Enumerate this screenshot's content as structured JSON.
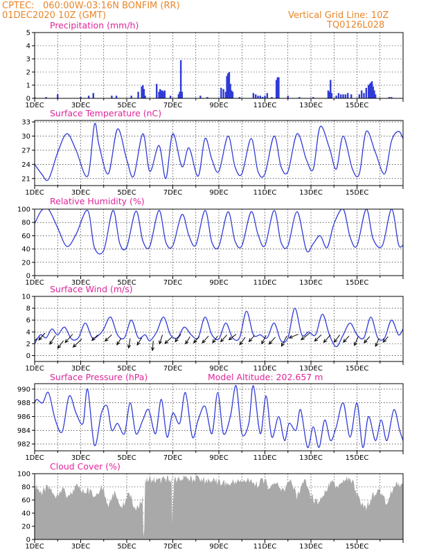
{
  "header": {
    "source_label": "CPTEC:",
    "location": "060:00W-03:16N  BONFIM (RR)",
    "run": "01DEC2020 10Z (GMT)",
    "grid_note": "Vertical Grid Line: 10Z",
    "model_code": "TQ0126L028"
  },
  "x_tick_labels": [
    "1DEC",
    "3DEC",
    "5DEC",
    "7DEC",
    "9DEC",
    "11DEC",
    "13DEC",
    "15DEC"
  ],
  "colors": {
    "series": "#2f3bd6",
    "cloud": "#a9a9a9",
    "arrow": "#000000",
    "header": "#e8862a",
    "title": "#e0249a"
  },
  "chart_data": [
    {
      "type": "bar",
      "title": "Precipitation (mm/h)",
      "x": [
        0.0,
        0.5,
        1.0,
        2.0,
        2.35,
        2.55,
        3.35,
        3.55,
        4.2,
        4.5,
        4.65,
        4.7,
        4.75,
        4.8,
        5.3,
        5.4,
        5.45,
        5.5,
        5.55,
        5.6,
        5.65,
        5.9,
        6.25,
        6.3,
        6.35,
        6.4,
        7.2,
        7.5,
        8.1,
        8.2,
        8.3,
        8.35,
        8.4,
        8.45,
        8.5,
        8.55,
        8.6,
        8.9,
        9.5,
        9.6,
        9.7,
        9.8,
        9.9,
        10.0,
        10.1,
        10.3,
        10.5,
        10.55,
        10.6,
        11.0,
        11.5,
        12.1,
        12.75,
        12.8,
        12.85,
        12.9,
        13.1,
        13.2,
        13.3,
        13.4,
        13.5,
        13.6,
        13.75,
        14.1,
        14.2,
        14.3,
        14.4,
        14.5,
        14.55,
        14.6,
        14.65,
        14.7,
        14.75,
        14.8,
        15.4,
        15.5
      ],
      "values": [
        0.1,
        0.1,
        0.3,
        0.1,
        0.2,
        0.4,
        0.2,
        0.2,
        0.2,
        0.5,
        0.9,
        1.0,
        0.7,
        0.2,
        1.1,
        0.5,
        0.7,
        0.6,
        0.6,
        0.5,
        0.6,
        0.2,
        0.3,
        0.5,
        2.9,
        0.5,
        0.2,
        0.1,
        0.8,
        0.7,
        0.5,
        1.7,
        1.9,
        2.0,
        1.1,
        0.6,
        0.5,
        0.1,
        0.4,
        0.3,
        0.2,
        0.2,
        0.1,
        0.2,
        0.4,
        0.1,
        1.4,
        1.6,
        1.6,
        0.2,
        0.1,
        0.1,
        0.6,
        0.5,
        1.4,
        0.4,
        0.2,
        0.4,
        0.3,
        0.3,
        0.3,
        0.4,
        0.3,
        0.3,
        0.6,
        0.4,
        0.8,
        1.0,
        1.1,
        1.2,
        1.3,
        0.9,
        0.6,
        0.3,
        0.1,
        0.1
      ],
      "ylim": [
        0,
        5
      ],
      "yticks": [
        0,
        1,
        2,
        3,
        4,
        5
      ],
      "grid": true
    },
    {
      "type": "line",
      "title": "Surface Temperature (nC)",
      "series": [
        {
          "x": [
            0.0,
            0.3,
            0.6,
            1.0,
            1.4,
            1.8,
            2.3,
            2.6,
            2.8,
            3.2,
            3.6,
            4.0,
            4.3,
            4.7,
            5.0,
            5.4,
            5.7,
            6.0,
            6.4,
            6.7,
            7.1,
            7.4,
            7.7,
            8.0,
            8.4,
            8.7,
            9.0,
            9.4,
            9.7,
            10.0,
            10.4,
            10.7,
            11.0,
            11.4,
            11.8,
            12.1,
            12.4,
            12.8,
            13.1,
            13.4,
            13.8,
            14.1,
            14.4,
            14.8,
            15.2,
            15.5,
            15.8,
            16.0
          ],
          "values": [
            24.0,
            22.0,
            20.8,
            26.5,
            30.5,
            27.0,
            21.5,
            32.5,
            28.0,
            22.0,
            31.5,
            25.0,
            21.5,
            30.5,
            22.5,
            28.0,
            21.0,
            30.5,
            23.5,
            27.5,
            21.5,
            29.5,
            25.0,
            22.5,
            30.0,
            23.5,
            22.0,
            29.5,
            22.5,
            22.0,
            30.0,
            23.5,
            22.5,
            30.5,
            25.0,
            23.0,
            32.0,
            27.5,
            23.0,
            30.0,
            23.0,
            22.0,
            31.0,
            26.5,
            22.0,
            29.0,
            31.0,
            29.5
          ]
        }
      ],
      "ylim": [
        19.5,
        33.3
      ],
      "yticks": [
        21,
        24,
        27,
        30,
        33
      ],
      "grid": true
    },
    {
      "type": "line",
      "title": "Relative Humidity (%)",
      "series": [
        {
          "x": [
            0.0,
            0.3,
            0.6,
            1.0,
            1.4,
            1.8,
            2.3,
            2.6,
            3.0,
            3.4,
            3.7,
            4.0,
            4.4,
            4.7,
            5.0,
            5.4,
            5.7,
            6.0,
            6.4,
            6.7,
            7.0,
            7.4,
            7.7,
            8.0,
            8.4,
            8.7,
            9.0,
            9.4,
            9.7,
            10.0,
            10.4,
            10.7,
            11.0,
            11.4,
            11.8,
            12.1,
            12.4,
            12.7,
            13.0,
            13.4,
            13.7,
            14.0,
            14.4,
            14.7,
            15.1,
            15.5,
            15.8,
            16.0
          ],
          "values": [
            78,
            98,
            100,
            72,
            44,
            62,
            98,
            42,
            38,
            98,
            48,
            43,
            97,
            52,
            44,
            98,
            50,
            45,
            92,
            60,
            46,
            98,
            50,
            44,
            96,
            52,
            45,
            96,
            62,
            45,
            98,
            50,
            45,
            96,
            38,
            48,
            60,
            42,
            78,
            100,
            58,
            45,
            100,
            55,
            45,
            100,
            47,
            46
          ]
        }
      ],
      "ylim": [
        0,
        100
      ],
      "yticks": [
        0,
        20,
        40,
        60,
        80,
        100
      ],
      "grid": true
    },
    {
      "type": "line",
      "title": "Surface Wind (m/s)",
      "series": [
        {
          "x": [
            0.0,
            0.25,
            0.5,
            0.75,
            1.0,
            1.3,
            1.6,
            1.9,
            2.2,
            2.5,
            2.8,
            3.0,
            3.3,
            3.6,
            3.9,
            4.2,
            4.5,
            4.8,
            5.0,
            5.3,
            5.6,
            5.9,
            6.2,
            6.5,
            6.8,
            7.1,
            7.4,
            7.7,
            8.0,
            8.3,
            8.6,
            8.9,
            9.2,
            9.5,
            9.8,
            10.1,
            10.4,
            10.7,
            11.0,
            11.3,
            11.6,
            11.9,
            12.2,
            12.5,
            12.8,
            13.1,
            13.4,
            13.7,
            14.0,
            14.3,
            14.6,
            14.9,
            15.2,
            15.5,
            15.8,
            16.0
          ],
          "values": [
            2.0,
            3.5,
            3.0,
            4.5,
            3.5,
            4.8,
            2.8,
            3.0,
            5.5,
            3.0,
            3.5,
            4.5,
            6.5,
            3.5,
            3.0,
            6.0,
            3.0,
            3.5,
            2.5,
            4.0,
            6.5,
            3.5,
            3.0,
            4.8,
            3.5,
            3.0,
            6.5,
            3.5,
            2.8,
            5.5,
            3.0,
            3.0,
            7.5,
            3.5,
            3.5,
            3.0,
            5.5,
            2.5,
            3.0,
            8.0,
            3.5,
            4.0,
            3.5,
            7.0,
            3.5,
            1.5,
            3.5,
            5.5,
            3.5,
            3.0,
            6.5,
            3.0,
            3.0,
            6.0,
            3.5,
            4.5
          ]
        }
      ],
      "vectors": [
        {
          "x": 0.1,
          "y": 2.9,
          "dir": 225,
          "len": 1.2
        },
        {
          "x": 0.45,
          "y": 3.8,
          "dir": 225,
          "len": 1.0
        },
        {
          "x": 0.9,
          "y": 3.4,
          "dir": 215,
          "len": 1.1
        },
        {
          "x": 1.25,
          "y": 2.5,
          "dir": 220,
          "len": 1.0
        },
        {
          "x": 1.65,
          "y": 3.6,
          "dir": 225,
          "len": 1.2
        },
        {
          "x": 2.05,
          "y": 2.8,
          "dir": 230,
          "len": 1.3
        },
        {
          "x": 2.75,
          "y": 3.5,
          "dir": 230,
          "len": 0.9
        },
        {
          "x": 3.35,
          "y": 3.5,
          "dir": 230,
          "len": 1.0
        },
        {
          "x": 3.75,
          "y": 2.9,
          "dir": 215,
          "len": 0.8
        },
        {
          "x": 4.15,
          "y": 2.9,
          "dir": 190,
          "len": 1.0
        },
        {
          "x": 4.65,
          "y": 3.0,
          "dir": 215,
          "len": 0.9
        },
        {
          "x": 5.15,
          "y": 2.5,
          "dir": 185,
          "len": 1.0
        },
        {
          "x": 5.55,
          "y": 3.5,
          "dir": 200,
          "len": 1.0
        },
        {
          "x": 5.95,
          "y": 3.1,
          "dir": 230,
          "len": 1.0
        },
        {
          "x": 6.35,
          "y": 3.6,
          "dir": 220,
          "len": 1.0
        },
        {
          "x": 6.75,
          "y": 3.2,
          "dir": 215,
          "len": 0.9
        },
        {
          "x": 7.15,
          "y": 3.2,
          "dir": 225,
          "len": 0.9
        },
        {
          "x": 7.55,
          "y": 3.3,
          "dir": 225,
          "len": 1.0
        },
        {
          "x": 7.95,
          "y": 3.3,
          "dir": 220,
          "len": 0.9
        },
        {
          "x": 8.35,
          "y": 3.5,
          "dir": 225,
          "len": 1.0
        },
        {
          "x": 8.75,
          "y": 3.6,
          "dir": 235,
          "len": 1.0
        },
        {
          "x": 9.15,
          "y": 3.1,
          "dir": 220,
          "len": 1.0
        },
        {
          "x": 9.55,
          "y": 3.4,
          "dir": 225,
          "len": 0.9
        },
        {
          "x": 10.05,
          "y": 3.4,
          "dir": 210,
          "len": 1.0
        },
        {
          "x": 10.45,
          "y": 3.1,
          "dir": 225,
          "len": 1.0
        },
        {
          "x": 10.95,
          "y": 3.3,
          "dir": 210,
          "len": 1.2
        },
        {
          "x": 11.45,
          "y": 3.6,
          "dir": 250,
          "len": 1.1
        },
        {
          "x": 11.95,
          "y": 3.8,
          "dir": 235,
          "len": 1.2
        },
        {
          "x": 12.45,
          "y": 3.5,
          "dir": 230,
          "len": 1.0
        },
        {
          "x": 12.85,
          "y": 3.5,
          "dir": 225,
          "len": 1.1
        },
        {
          "x": 13.25,
          "y": 3.5,
          "dir": 220,
          "len": 1.0
        },
        {
          "x": 13.65,
          "y": 3.3,
          "dir": 225,
          "len": 0.9
        },
        {
          "x": 14.05,
          "y": 3.2,
          "dir": 205,
          "len": 1.0
        },
        {
          "x": 14.55,
          "y": 3.2,
          "dir": 225,
          "len": 0.9
        },
        {
          "x": 14.95,
          "y": 2.9,
          "dir": 205,
          "len": 0.9
        },
        {
          "x": 15.35,
          "y": 3.2,
          "dir": 225,
          "len": 0.8
        }
      ],
      "ylim": [
        -1,
        10
      ],
      "yticks": [
        0,
        2,
        4,
        6,
        8,
        10
      ],
      "grid": true
    },
    {
      "type": "line",
      "title": "Surface Pressure (hPa)",
      "subtitle": "Model Altitude: 202.657 m",
      "series": [
        {
          "x": [
            0.0,
            0.1,
            0.35,
            0.6,
            0.9,
            1.2,
            1.5,
            1.8,
            2.1,
            2.3,
            2.6,
            2.9,
            3.15,
            3.35,
            3.6,
            3.9,
            4.15,
            4.4,
            4.7,
            4.95,
            5.25,
            5.5,
            5.75,
            6.0,
            6.3,
            6.55,
            6.85,
            7.1,
            7.4,
            7.7,
            7.95,
            8.2,
            8.5,
            8.75,
            9.0,
            9.3,
            9.5,
            9.8,
            10.05,
            10.3,
            10.6,
            10.85,
            11.05,
            11.35,
            11.55,
            11.85,
            12.1,
            12.35,
            12.6,
            12.85,
            13.1,
            13.4,
            13.7,
            14.0,
            14.25,
            14.5,
            14.8,
            15.05,
            15.3,
            15.6,
            15.85,
            16.0
          ],
          "values": [
            988.0,
            988.5,
            988.0,
            989.5,
            985.5,
            983.8,
            989.0,
            986.5,
            985.0,
            990.0,
            981.8,
            986.5,
            987.5,
            984.0,
            985.0,
            983.5,
            988.0,
            983.5,
            985.5,
            987.0,
            983.5,
            988.5,
            983.0,
            986.5,
            985.0,
            989.5,
            983.0,
            985.5,
            987.5,
            983.5,
            989.5,
            983.5,
            986.0,
            990.5,
            983.5,
            985.0,
            990.5,
            983.5,
            989.0,
            983.0,
            986.0,
            982.5,
            985.0,
            984.0,
            987.0,
            981.5,
            984.5,
            981.5,
            985.5,
            982.5,
            984.5,
            988.0,
            983.0,
            988.0,
            981.5,
            986.0,
            982.5,
            985.5,
            982.5,
            987.0,
            984.0,
            982.5
          ]
        }
      ],
      "ylim": [
        981.0,
        990.8
      ],
      "yticks": [
        982,
        984,
        986,
        988,
        990
      ],
      "grid": true
    },
    {
      "type": "area",
      "title": "Cloud Cover (%)",
      "series": [
        {
          "x": [
            0.0,
            0.3,
            0.6,
            0.9,
            1.2,
            1.5,
            1.8,
            2.0,
            2.3,
            2.6,
            2.9,
            3.2,
            3.5,
            3.8,
            4.1,
            4.4,
            4.7,
            4.72,
            4.75,
            4.8,
            5.1,
            5.4,
            5.7,
            5.95,
            5.97,
            6.05,
            6.3,
            6.6,
            6.9,
            7.2,
            7.5,
            7.8,
            8.1,
            8.4,
            8.7,
            9.0,
            9.3,
            9.6,
            9.9,
            10.2,
            10.5,
            10.8,
            11.1,
            11.4,
            11.7,
            12.0,
            12.3,
            12.6,
            12.9,
            13.2,
            13.5,
            13.8,
            14.1,
            14.4,
            14.7,
            15.0,
            15.3,
            15.6,
            16.0
          ],
          "values": [
            88,
            75,
            88,
            72,
            85,
            70,
            88,
            78,
            80,
            72,
            86,
            60,
            78,
            55,
            80,
            50,
            70,
            5,
            2,
            95,
            98,
            95,
            98,
            96,
            20,
            97,
            98,
            98,
            98,
            98,
            95,
            96,
            92,
            90,
            94,
            96,
            95,
            88,
            98,
            85,
            92,
            80,
            95,
            70,
            98,
            72,
            60,
            80,
            92,
            85,
            98,
            95,
            65,
            55,
            75,
            80,
            60,
            88,
            92
          ]
        }
      ],
      "ylim": [
        0,
        100
      ],
      "yticks": [
        0,
        20,
        40,
        60,
        80,
        100
      ],
      "grid": true
    }
  ]
}
